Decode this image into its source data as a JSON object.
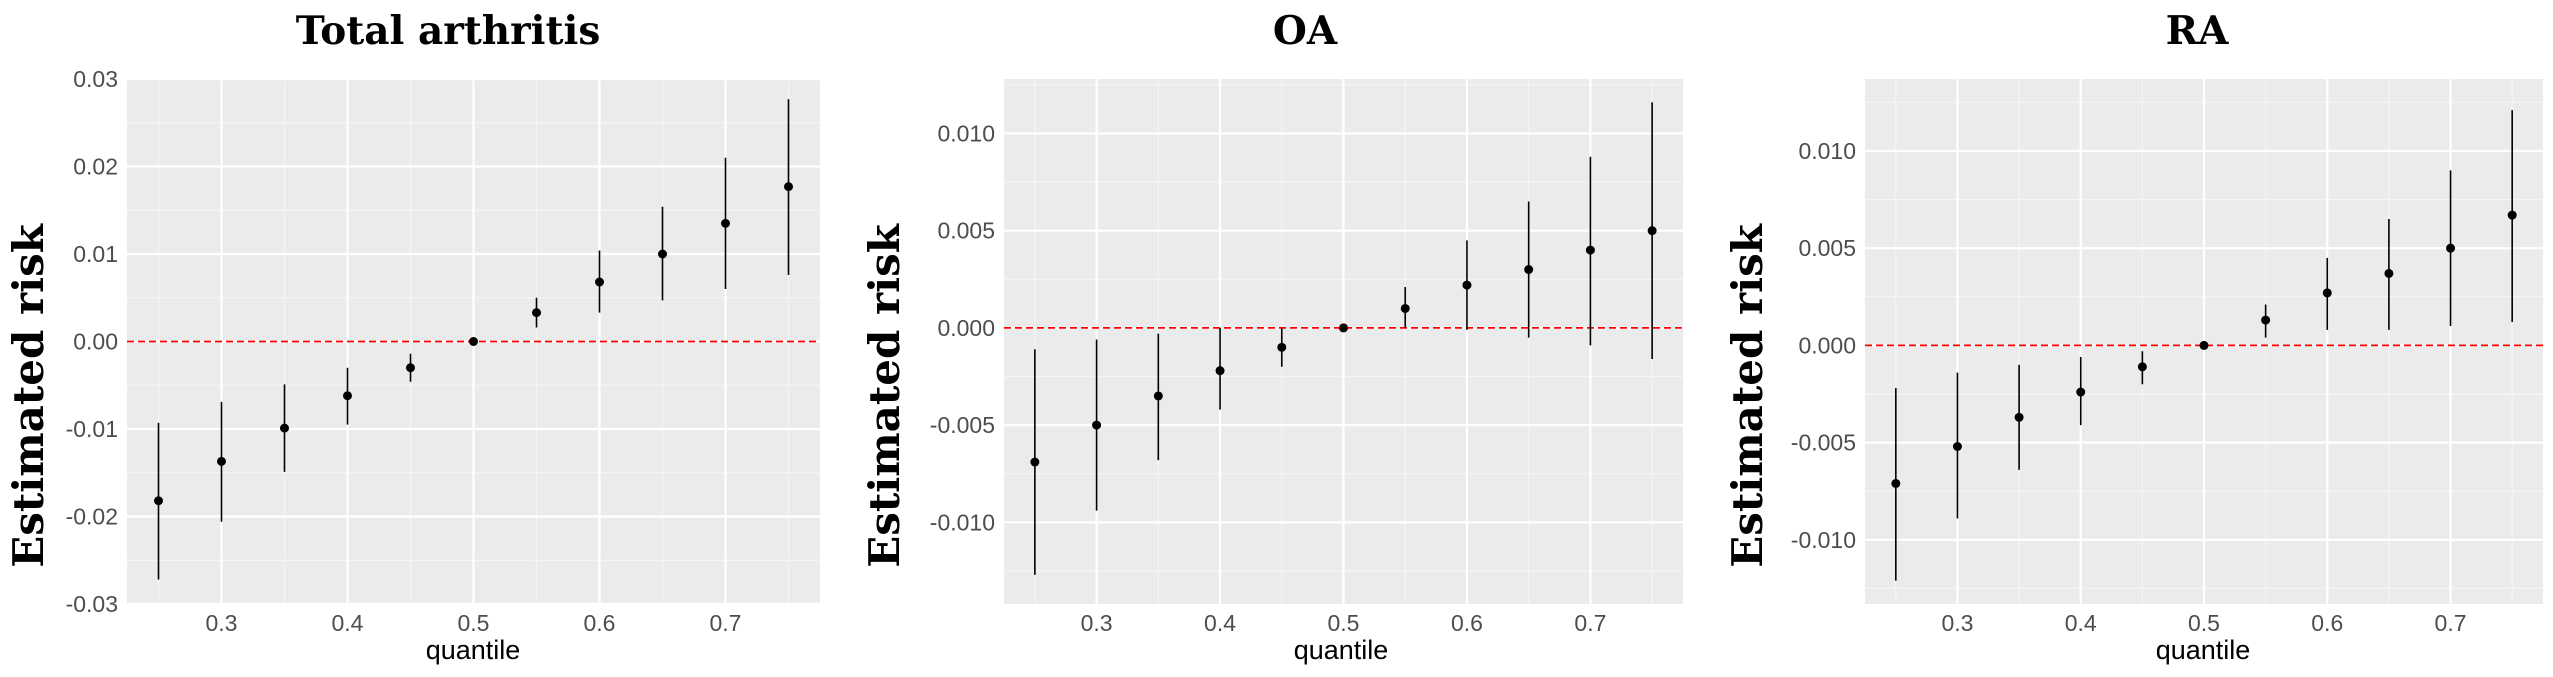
{
  "colors": {
    "panel_background": "#ebebeb",
    "major_grid": "#ffffff",
    "minor_grid": "#f5f5f5",
    "point": "#000000",
    "error_bar": "#000000",
    "reference_line": "#ff0000",
    "tick_text": "#4d4d4d"
  },
  "chart_data": [
    {
      "type": "scatter",
      "subtype": "point-range",
      "title": "Total arthritis",
      "xlabel": "quantile",
      "ylabel": "Estimated risk",
      "xlim": [
        0.225,
        0.775
      ],
      "ylim": [
        -0.03,
        0.03
      ],
      "xticks": [
        0.3,
        0.4,
        0.5,
        0.6,
        0.7
      ],
      "xtick_labels": [
        "0.3",
        "0.4",
        "0.5",
        "0.6",
        "0.7"
      ],
      "yticks": [
        -0.03,
        -0.02,
        -0.01,
        0.0,
        0.01,
        0.02,
        0.03
      ],
      "ytick_labels": [
        "-0.03",
        "-0.02",
        "-0.01",
        "0.00",
        "0.01",
        "0.02",
        "0.03"
      ],
      "grid": true,
      "reference_line": {
        "y": 0,
        "style": "dashed",
        "color": "#ff0000"
      },
      "points": [
        {
          "x": 0.25,
          "y": -0.0182,
          "lower": -0.0272,
          "upper": -0.0093
        },
        {
          "x": 0.3,
          "y": -0.0137,
          "lower": -0.0206,
          "upper": -0.0069
        },
        {
          "x": 0.35,
          "y": -0.0099,
          "lower": -0.0149,
          "upper": -0.0049
        },
        {
          "x": 0.4,
          "y": -0.0062,
          "lower": -0.0095,
          "upper": -0.003
        },
        {
          "x": 0.45,
          "y": -0.003,
          "lower": -0.0046,
          "upper": -0.0014
        },
        {
          "x": 0.5,
          "y": 0.0,
          "lower": 0.0,
          "upper": 0.0
        },
        {
          "x": 0.55,
          "y": 0.0033,
          "lower": 0.0016,
          "upper": 0.005
        },
        {
          "x": 0.6,
          "y": 0.0068,
          "lower": 0.0033,
          "upper": 0.0104
        },
        {
          "x": 0.65,
          "y": 0.01,
          "lower": 0.0047,
          "upper": 0.0154
        },
        {
          "x": 0.7,
          "y": 0.0135,
          "lower": 0.006,
          "upper": 0.021
        },
        {
          "x": 0.75,
          "y": 0.0177,
          "lower": 0.0076,
          "upper": 0.0277
        }
      ]
    },
    {
      "type": "scatter",
      "subtype": "point-range",
      "title": "OA",
      "xlabel": "quantile",
      "ylabel": "Estimated risk",
      "xlim": [
        0.225,
        0.775
      ],
      "ylim": [
        -0.0142,
        0.0128
      ],
      "xticks": [
        0.3,
        0.4,
        0.5,
        0.6,
        0.7
      ],
      "xtick_labels": [
        "0.3",
        "0.4",
        "0.5",
        "0.6",
        "0.7"
      ],
      "yticks": [
        -0.01,
        -0.005,
        0.0,
        0.005,
        0.01
      ],
      "ytick_labels": [
        "-0.010",
        "-0.005",
        "0.000",
        "0.005",
        "0.010"
      ],
      "grid": true,
      "reference_line": {
        "y": 0,
        "style": "dashed",
        "color": "#ff0000"
      },
      "points": [
        {
          "x": 0.25,
          "y": -0.0069,
          "lower": -0.0127,
          "upper": -0.0011
        },
        {
          "x": 0.3,
          "y": -0.005,
          "lower": -0.0094,
          "upper": -0.0006
        },
        {
          "x": 0.35,
          "y": -0.0035,
          "lower": -0.0068,
          "upper": -0.0003
        },
        {
          "x": 0.4,
          "y": -0.0022,
          "lower": -0.0042,
          "upper": 0.0
        },
        {
          "x": 0.45,
          "y": -0.001,
          "lower": -0.002,
          "upper": 0.0
        },
        {
          "x": 0.5,
          "y": 0.0,
          "lower": 0.0,
          "upper": 0.0
        },
        {
          "x": 0.55,
          "y": 0.001,
          "lower": 0.0,
          "upper": 0.0021
        },
        {
          "x": 0.6,
          "y": 0.0022,
          "lower": -0.0001,
          "upper": 0.0045
        },
        {
          "x": 0.65,
          "y": 0.003,
          "lower": -0.0005,
          "upper": 0.0065
        },
        {
          "x": 0.7,
          "y": 0.004,
          "lower": -0.0009,
          "upper": 0.0088
        },
        {
          "x": 0.75,
          "y": 0.005,
          "lower": -0.0016,
          "upper": 0.0116
        }
      ]
    },
    {
      "type": "scatter",
      "subtype": "point-range",
      "title": "RA",
      "xlabel": "quantile",
      "ylabel": "Estimated risk",
      "xlim": [
        0.225,
        0.775
      ],
      "ylim": [
        -0.0133,
        0.0137
      ],
      "xticks": [
        0.3,
        0.4,
        0.5,
        0.6,
        0.7
      ],
      "xtick_labels": [
        "0.3",
        "0.4",
        "0.5",
        "0.6",
        "0.7"
      ],
      "yticks": [
        -0.01,
        -0.005,
        0.0,
        0.005,
        0.01
      ],
      "ytick_labels": [
        "-0.010",
        "-0.005",
        "0.000",
        "0.005",
        "0.010"
      ],
      "grid": true,
      "reference_line": {
        "y": 0,
        "style": "dashed",
        "color": "#ff0000"
      },
      "points": [
        {
          "x": 0.25,
          "y": -0.0071,
          "lower": -0.0121,
          "upper": -0.0022
        },
        {
          "x": 0.3,
          "y": -0.0052,
          "lower": -0.0089,
          "upper": -0.0014
        },
        {
          "x": 0.35,
          "y": -0.0037,
          "lower": -0.0064,
          "upper": -0.001
        },
        {
          "x": 0.4,
          "y": -0.0024,
          "lower": -0.0041,
          "upper": -0.0006
        },
        {
          "x": 0.45,
          "y": -0.0011,
          "lower": -0.002,
          "upper": -0.0003
        },
        {
          "x": 0.5,
          "y": 0.0,
          "lower": 0.0,
          "upper": 0.0
        },
        {
          "x": 0.55,
          "y": 0.0013,
          "lower": 0.0004,
          "upper": 0.0021
        },
        {
          "x": 0.6,
          "y": 0.0027,
          "lower": 0.0008,
          "upper": 0.0045
        },
        {
          "x": 0.65,
          "y": 0.0037,
          "lower": 0.0008,
          "upper": 0.0065
        },
        {
          "x": 0.7,
          "y": 0.005,
          "lower": 0.001,
          "upper": 0.009
        },
        {
          "x": 0.75,
          "y": 0.0067,
          "lower": 0.0012,
          "upper": 0.0121
        }
      ]
    }
  ]
}
